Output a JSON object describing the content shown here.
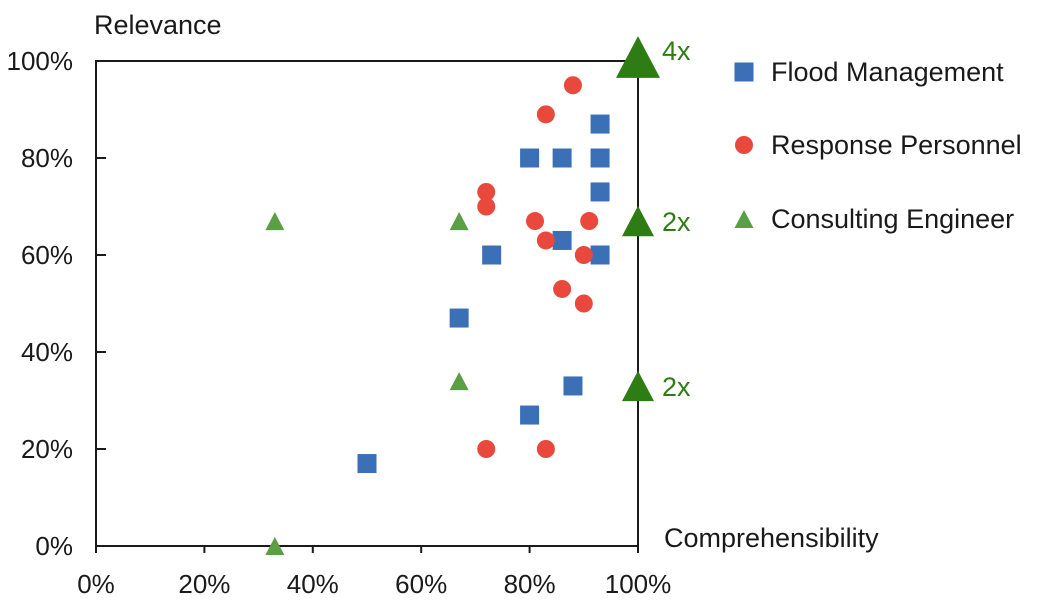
{
  "chart_data": {
    "type": "scatter",
    "ylabel": "Relevance",
    "xlabel": "Comprehensibility",
    "xlim": [
      0,
      100
    ],
    "ylim": [
      0,
      100
    ],
    "x_ticks": [
      "0%",
      "20%",
      "40%",
      "60%",
      "80%",
      "100%"
    ],
    "y_ticks": [
      "0%",
      "20%",
      "40%",
      "60%",
      "80%",
      "100%"
    ],
    "grid": false,
    "legend_position": "right",
    "series": [
      {
        "name": "Flood Management",
        "marker": "square",
        "color": "#3b6fb6",
        "points": [
          {
            "x": 50,
            "y": 17
          },
          {
            "x": 67,
            "y": 47
          },
          {
            "x": 73,
            "y": 60
          },
          {
            "x": 80,
            "y": 27
          },
          {
            "x": 80,
            "y": 80
          },
          {
            "x": 86,
            "y": 80
          },
          {
            "x": 86,
            "y": 63
          },
          {
            "x": 88,
            "y": 33
          },
          {
            "x": 93,
            "y": 87
          },
          {
            "x": 93,
            "y": 80
          },
          {
            "x": 93,
            "y": 73
          },
          {
            "x": 93,
            "y": 60
          }
        ]
      },
      {
        "name": "Response Personnel",
        "marker": "circle",
        "color": "#e8493c",
        "points": [
          {
            "x": 72,
            "y": 20
          },
          {
            "x": 83,
            "y": 20
          },
          {
            "x": 72,
            "y": 73
          },
          {
            "x": 72,
            "y": 70
          },
          {
            "x": 81,
            "y": 67
          },
          {
            "x": 83,
            "y": 63
          },
          {
            "x": 83,
            "y": 89
          },
          {
            "x": 88,
            "y": 95
          },
          {
            "x": 86,
            "y": 53
          },
          {
            "x": 90,
            "y": 50
          },
          {
            "x": 90,
            "y": 60
          },
          {
            "x": 91,
            "y": 67
          }
        ]
      },
      {
        "name": "Consulting Engineer",
        "marker": "triangle",
        "color": "#5a9e45",
        "points": [
          {
            "x": 33,
            "y": 0
          },
          {
            "x": 33,
            "y": 67
          },
          {
            "x": 67,
            "y": 67
          },
          {
            "x": 67,
            "y": 34
          }
        ]
      }
    ],
    "edge_markers": [
      {
        "x": 100,
        "y": 100,
        "label": "4x",
        "size": "large"
      },
      {
        "x": 100,
        "y": 67,
        "label": "2x",
        "size": "medium"
      },
      {
        "x": 100,
        "y": 33,
        "label": "2x",
        "size": "medium"
      }
    ],
    "edge_marker_color": "#2e7d14"
  }
}
